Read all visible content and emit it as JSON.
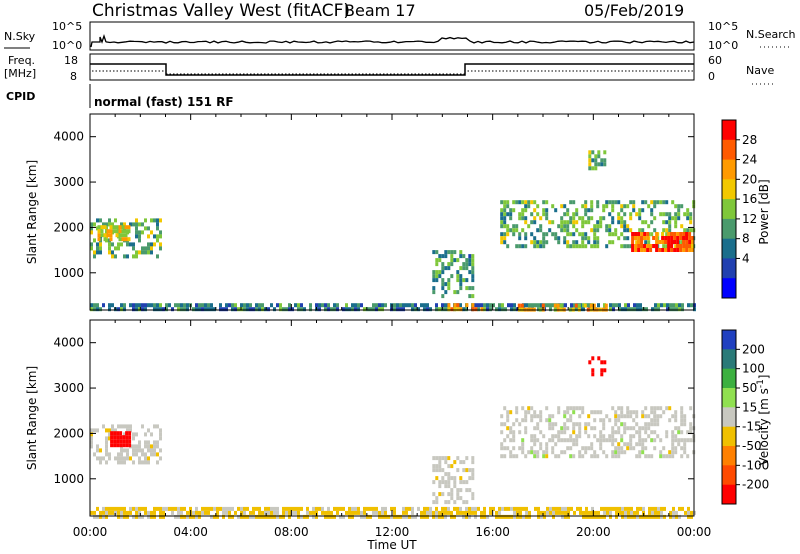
{
  "header": {
    "station": "Christmas Valley West (fitACF)",
    "beam": "Beam 17",
    "date": "05/Feb/2019"
  },
  "ribbons": {
    "nsky_label": "N.Sky",
    "nsky_ticks": [
      "10^5",
      "10^0"
    ],
    "nsearch_label": "N.Search",
    "nsearch_ticks": [
      "10^5",
      "10^0"
    ],
    "freq_label": "Freq.",
    "freq_unit": "[MHz]",
    "freq_ticks": [
      "18",
      "8"
    ],
    "nave_label": "Nave",
    "nave_ticks": [
      "60",
      "0"
    ],
    "cpid_label": "CPID",
    "cpid_value": "normal (fast) 151 RF"
  },
  "x_axis": {
    "label": "Time UT",
    "ticks": [
      "00:00",
      "04:00",
      "08:00",
      "12:00",
      "16:00",
      "20:00",
      "00:00"
    ]
  },
  "y_axis": {
    "label": "Slant Range [km]",
    "ticks": [
      "4000",
      "3000",
      "2000",
      "1000"
    ]
  },
  "power_scale": {
    "label": "Power [dB]",
    "ticks": [
      "28",
      "24",
      "20",
      "16",
      "12",
      "8",
      "4"
    ],
    "colors": [
      "#ff0000",
      "#ff5a00",
      "#ff9a00",
      "#f2c800",
      "#7fc73a",
      "#4a9a6c",
      "#1a6e8c",
      "#2040b0",
      "#0000ff"
    ]
  },
  "velocity_scale": {
    "label": "Velocity [m s",
    "label_sup": "-1",
    "label_end": "]",
    "ticks": [
      "200",
      "100",
      "50",
      "15",
      "-15",
      "-50",
      "-100",
      "-200"
    ],
    "colors": [
      "#2040c0",
      "#2a7a78",
      "#3cb040",
      "#90e050",
      "#c8c8c0",
      "#f0c000",
      "#ff8000",
      "#ff4a00",
      "#ff0000"
    ]
  },
  "chart_data": [
    {
      "type": "heatmap",
      "title": "Power",
      "xlabel": "Time UT",
      "ylabel": "Slant Range [km]",
      "xlim": [
        0,
        24
      ],
      "ylim": [
        180,
        4500
      ],
      "colorbar_label": "Power [dB]",
      "clim": [
        0,
        32
      ],
      "regions": [
        {
          "name": "near-range",
          "t": [
            0,
            24
          ],
          "r": [
            180,
            330
          ],
          "value": 10
        },
        {
          "name": "near-range-strong-1",
          "t": [
            14.2,
            15.6
          ],
          "r": [
            200,
            330
          ],
          "value": 24
        },
        {
          "name": "near-range-strong-2",
          "t": [
            17.0,
            20.5
          ],
          "r": [
            200,
            320
          ],
          "value": 22
        },
        {
          "name": "early-band",
          "t": [
            0,
            2.8
          ],
          "r": [
            1400,
            2200
          ],
          "value": 14
        },
        {
          "name": "early-core",
          "t": [
            0.3,
            1.6
          ],
          "r": [
            1700,
            2050
          ],
          "value": 20
        },
        {
          "name": "midday-streak",
          "t": [
            13.6,
            15.2
          ],
          "r": [
            500,
            1500
          ],
          "value": 12
        },
        {
          "name": "evening-band",
          "t": [
            16.3,
            24
          ],
          "r": [
            1600,
            2600
          ],
          "value": 14
        },
        {
          "name": "evening-core",
          "t": [
            21.5,
            24
          ],
          "r": [
            1500,
            1900
          ],
          "value": 26
        },
        {
          "name": "high-patch",
          "t": [
            19.8,
            20.5
          ],
          "r": [
            3300,
            3700
          ],
          "value": 14
        }
      ]
    },
    {
      "type": "heatmap",
      "title": "Velocity",
      "xlabel": "Time UT",
      "ylabel": "Slant Range [km]",
      "xlim": [
        0,
        24
      ],
      "ylim": [
        180,
        4500
      ],
      "colorbar_label": "Velocity [m s-1]",
      "clim": [
        -250,
        250
      ],
      "regions": [
        {
          "name": "near-range",
          "t": [
            0,
            24
          ],
          "r": [
            180,
            380
          ],
          "value": -40
        },
        {
          "name": "early-band",
          "t": [
            0,
            2.8
          ],
          "r": [
            1400,
            2200
          ],
          "value": -5
        },
        {
          "name": "early-core",
          "t": [
            0.8,
            1.6
          ],
          "r": [
            1750,
            2050
          ],
          "value": -250
        },
        {
          "name": "midday-streak",
          "t": [
            13.6,
            15.2
          ],
          "r": [
            500,
            1500
          ],
          "value": -5
        },
        {
          "name": "evening-band",
          "t": [
            16.3,
            24
          ],
          "r": [
            1500,
            2600
          ],
          "value": 0
        },
        {
          "name": "high-patch",
          "t": [
            19.8,
            20.5
          ],
          "r": [
            3300,
            3700
          ],
          "value": -250
        }
      ]
    }
  ]
}
